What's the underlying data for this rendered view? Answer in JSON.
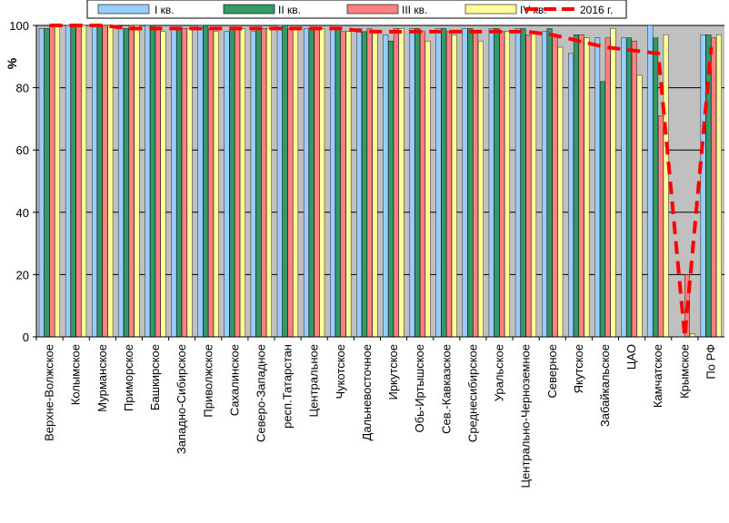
{
  "chart_data": {
    "type": "bar",
    "ylabel": "%",
    "ylim": [
      0,
      100
    ],
    "yticks": [
      0,
      20,
      40,
      60,
      80,
      100
    ],
    "grid": "horizontal",
    "legend_position": "top",
    "plot_background": "#c0c0c0",
    "categories": [
      "Верхне-Волжское",
      "Колымское",
      "Мурманское",
      "Приморское",
      "Башкирское",
      "Западно-Сибирское",
      "Приволжское",
      "Сахалинское",
      "Северо-Западное",
      "респ.Татарстан",
      "Центральное",
      "Чукотское",
      "Дальневосточное",
      "Иркутское",
      "Обь-Иртышское",
      "Сев.-Кавказское",
      "Среднесибирское",
      "Уральское",
      "Центрально-Черноземное",
      "Северное",
      "Якутское",
      "Забайкальское",
      "ЦАО",
      "Камчатское",
      "Крымское",
      "По РФ"
    ],
    "series": [
      {
        "name": "I кв.",
        "kind": "bar",
        "color": "#99ccff",
        "values": [
          99,
          100,
          100,
          99,
          100,
          99,
          100,
          98,
          98,
          100,
          99,
          99,
          99,
          97,
          99,
          99,
          99,
          99,
          99,
          98,
          91,
          96,
          96,
          100,
          null,
          97
        ]
      },
      {
        "name": "II кв.",
        "kind": "bar",
        "color": "#339966",
        "values": [
          99,
          100,
          100,
          99,
          100,
          99,
          100,
          99,
          99,
          100,
          99,
          99,
          98,
          95,
          99,
          99,
          99,
          99,
          99,
          99,
          97,
          82,
          96,
          96,
          null,
          97
        ]
      },
      {
        "name": "III кв.",
        "kind": "bar",
        "color": "#ff8080",
        "values": [
          100,
          100,
          100,
          100,
          99,
          99,
          99,
          99,
          99,
          99,
          99,
          98,
          99,
          99,
          98,
          98,
          98,
          98,
          97,
          97,
          97,
          96,
          95,
          71,
          20,
          96
        ]
      },
      {
        "name": "IV кв.",
        "kind": "bar",
        "color": "#ffff99",
        "values": [
          100,
          100,
          100,
          100,
          98,
          99,
          98,
          99,
          99,
          99,
          99,
          98,
          98,
          99,
          95,
          97,
          95,
          98,
          98,
          93,
          96,
          99,
          84,
          97,
          1,
          97
        ]
      },
      {
        "name": "2016 г.",
        "kind": "line",
        "color": "#ff0000",
        "style": "dashed",
        "values": [
          100,
          100,
          100,
          99,
          99,
          99,
          99,
          99,
          99,
          99,
          99,
          99,
          98,
          98,
          98,
          98,
          98,
          98,
          98,
          97,
          95,
          93,
          92,
          91,
          0,
          93
        ]
      }
    ]
  }
}
